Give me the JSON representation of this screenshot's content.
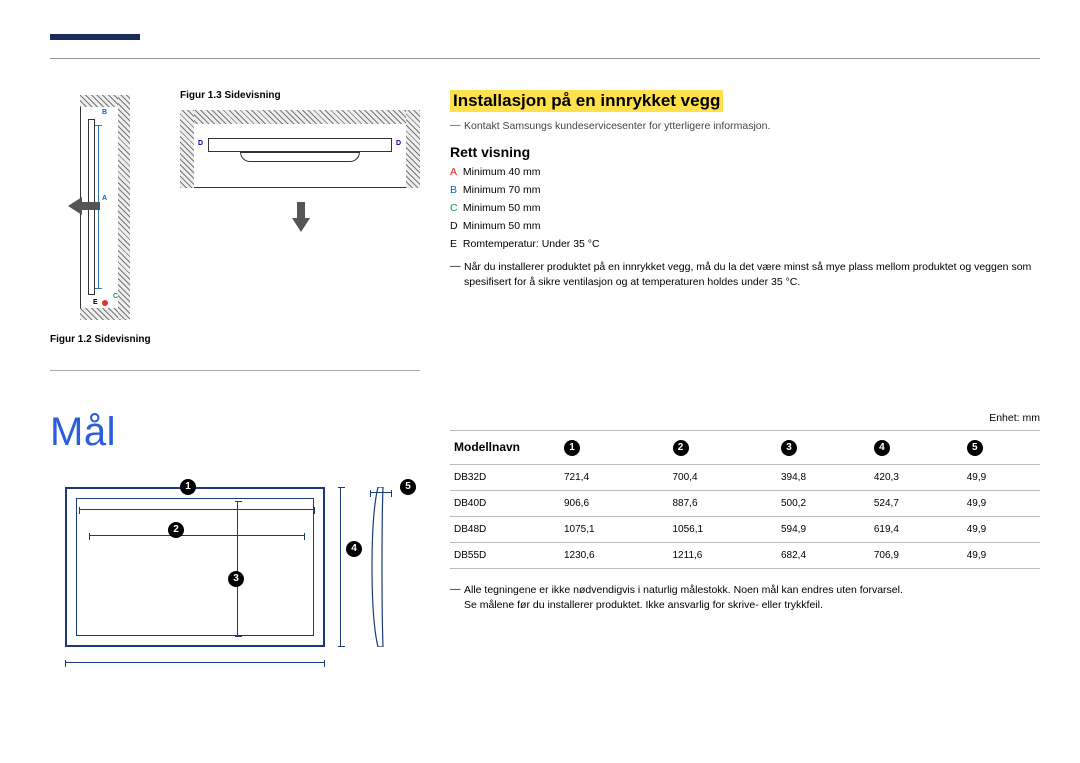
{
  "left": {
    "fig13_caption": "Figur 1.3 Sidevisning",
    "fig12_caption": "Figur 1.2 Sidevisning",
    "side_labels": {
      "A": "A",
      "B": "B",
      "C": "C",
      "E": "E",
      "D1": "D",
      "D2": "D"
    },
    "heading": "Mål"
  },
  "right": {
    "section_heading": "Installasjon på en innrykket vegg",
    "contact_note": "Kontakt Samsungs kundeservicesenter for ytterligere informasjon.",
    "sub_heading": "Rett visning",
    "specs": [
      {
        "label": "A",
        "text": "Minimum 40 mm",
        "class": "spec-A"
      },
      {
        "label": "B",
        "text": "Minimum 70 mm",
        "class": "spec-B"
      },
      {
        "label": "C",
        "text": "Minimum 50 mm",
        "class": "spec-C"
      },
      {
        "label": "D",
        "text": "Minimum 50 mm",
        "class": "spec-D"
      },
      {
        "label": "E",
        "text": "Romtemperatur: Under 35 °C",
        "class": "spec-E"
      }
    ],
    "vent_note": "Når du installerer produktet på en innrykket vegg, må du la det være minst så mye plass mellom produktet og veggen som spesifisert for å sikre ventilasjon og at temperaturen holdes under 35 °C."
  },
  "table": {
    "unit_label": "Enhet: mm",
    "header_model": "Modellnavn",
    "columns": [
      "1",
      "2",
      "3",
      "4",
      "5"
    ],
    "rows": [
      {
        "model": "DB32D",
        "v": [
          "721,4",
          "700,4",
          "394,8",
          "420,3",
          "49,9"
        ]
      },
      {
        "model": "DB40D",
        "v": [
          "906,6",
          "887,6",
          "500,2",
          "524,7",
          "49,9"
        ]
      },
      {
        "model": "DB48D",
        "v": [
          "1075,1",
          "1056,1",
          "594,9",
          "619,4",
          "49,9"
        ]
      },
      {
        "model": "DB55D",
        "v": [
          "1230,6",
          "1211,6",
          "682,4",
          "706,9",
          "49,9"
        ]
      }
    ],
    "note1": "Alle tegningene er ikke nødvendigvis i naturlig målestokk. Noen mål kan endres uten forvarsel.",
    "note2": "Se målene før du installerer produktet. Ikke ansvarlig for skrive- eller trykkfeil."
  },
  "diagram_labels": {
    "n1": "1",
    "n2": "2",
    "n3": "3",
    "n4": "4",
    "n5": "5"
  }
}
